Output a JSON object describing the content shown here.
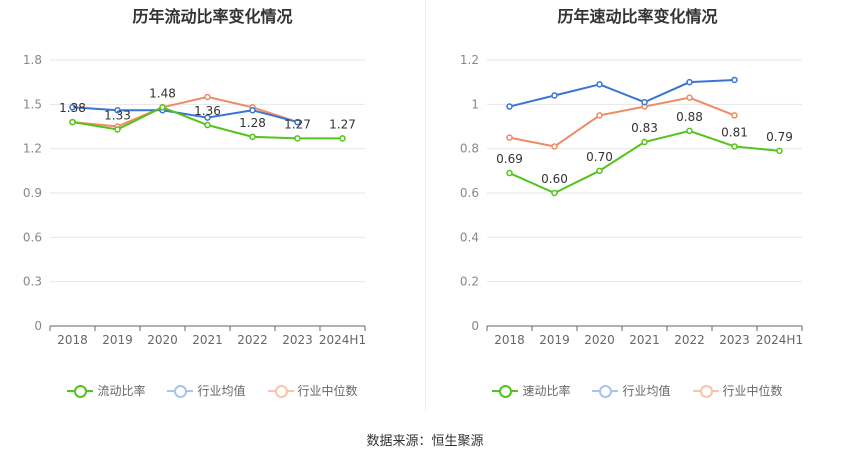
{
  "source_text": "数据来源：恒生聚源",
  "colors": {
    "company": "#52c41a",
    "industry_avg": "#3a75d4",
    "industry_median": "#f08a62"
  },
  "chart_data": [
    {
      "type": "line",
      "title": "历年流动比率变化情况",
      "x": [
        "2018",
        "2019",
        "2020",
        "2021",
        "2022",
        "2023",
        "2024H1"
      ],
      "ylim": [
        0,
        1.8
      ],
      "yticks": [
        "0",
        "0.3",
        "0.6",
        "0.9",
        "1.2",
        "1.5",
        "1.8"
      ],
      "legend": "bottom",
      "series": [
        {
          "name": "流动比率",
          "values": [
            1.38,
            1.33,
            1.48,
            1.36,
            1.28,
            1.27,
            1.27
          ],
          "labels": [
            "1.38",
            "1.33",
            "1.48",
            "1.36",
            "1.28",
            "1.27",
            "1.27"
          ]
        },
        {
          "name": "行业均值",
          "values": [
            1.48,
            1.46,
            1.46,
            1.41,
            1.46,
            1.38,
            null
          ]
        },
        {
          "name": "行业中位数",
          "values": [
            1.38,
            1.35,
            1.48,
            1.55,
            1.48,
            1.38,
            null
          ]
        }
      ]
    },
    {
      "type": "line",
      "title": "历年速动比率变化情况",
      "x": [
        "2018",
        "2019",
        "2020",
        "2021",
        "2022",
        "2023",
        "2024H1"
      ],
      "ylim": [
        0,
        1.2
      ],
      "yticks": [
        "0",
        "0.2",
        "0.4",
        "0.6",
        "0.8",
        "1",
        "1.2"
      ],
      "legend": "bottom",
      "series": [
        {
          "name": "速动比率",
          "values": [
            0.69,
            0.6,
            0.7,
            0.83,
            0.88,
            0.81,
            0.79
          ],
          "labels": [
            "0.69",
            "0.60",
            "0.70",
            "0.83",
            "0.88",
            "0.81",
            "0.79"
          ]
        },
        {
          "name": "行业均值",
          "values": [
            0.99,
            1.04,
            1.09,
            1.01,
            1.1,
            1.11,
            null
          ]
        },
        {
          "name": "行业中位数",
          "values": [
            0.85,
            0.81,
            0.95,
            0.99,
            1.03,
            0.95,
            null
          ]
        }
      ]
    }
  ]
}
